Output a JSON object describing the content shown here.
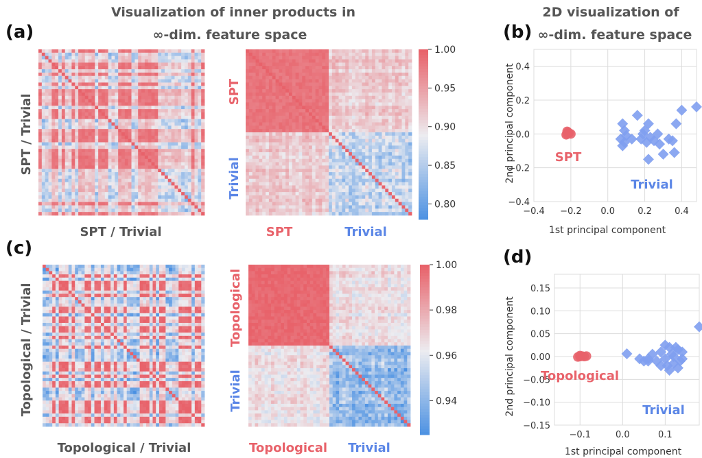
{
  "figure_title_a": [
    "Visualization of inner products in",
    "∞-dim. feature space"
  ],
  "figure_title_b": [
    "2D visualization of",
    "∞-dim. feature space"
  ],
  "panel_labels": [
    "(a)",
    "(b)",
    "(c)",
    "(d)"
  ],
  "colors": {
    "spt": "#e8626a",
    "trivial": "#5b86e6",
    "gray_text": "#555555",
    "diamond": "#7f9ef0",
    "grid": "#dcdcdc"
  },
  "chart_data": [
    {
      "panel": "(a) left",
      "type": "heatmap",
      "matrix_size": 50,
      "xlabel": "SPT / Trivial",
      "ylabel": "SPT / Trivial",
      "ordering": "interleaved",
      "value_range": [
        0.78,
        1.0
      ]
    },
    {
      "panel": "(a) right",
      "type": "heatmap",
      "matrix_size": 50,
      "groups": [
        "SPT",
        "Trivial"
      ],
      "group_sizes": [
        25,
        25
      ],
      "ordering": "sorted",
      "colorbar": {
        "min": 0.78,
        "max": 1.0,
        "ticks": [
          "1.00",
          "0.95",
          "0.90",
          "0.85",
          "0.80"
        ],
        "tick_values": [
          1.0,
          0.95,
          0.9,
          0.85,
          0.8
        ]
      },
      "typical_values": {
        "spt_spt": 0.985,
        "spt_trivial": 0.915,
        "trivial_trivial": 0.86,
        "diagonal": 1.0
      }
    },
    {
      "panel": "(b)",
      "type": "scatter",
      "xlabel": "1st principal component",
      "ylabel": "2nd principal component",
      "xlim": [
        -0.4,
        0.48
      ],
      "ylim": [
        -0.4,
        0.5
      ],
      "xticks": [
        "−0.4",
        "−0.2",
        "0.0",
        "0.2",
        "0.4"
      ],
      "xtick_values": [
        -0.4,
        -0.2,
        0.0,
        0.2,
        0.4
      ],
      "yticks": [
        "−0.4",
        "−0.2",
        "0.0",
        "0.2",
        "0.4"
      ],
      "ytick_values": [
        -0.4,
        -0.2,
        0.0,
        0.2,
        0.4
      ],
      "grid": true,
      "series": [
        {
          "name": "SPT",
          "marker": "circle",
          "color": "#e8626a",
          "points": [
            [
              -0.22,
              0.0
            ],
            [
              -0.215,
              0.01
            ],
            [
              -0.225,
              -0.005
            ],
            [
              -0.21,
              0.005
            ],
            [
              -0.22,
              0.015
            ],
            [
              -0.2,
              0.0
            ]
          ]
        },
        {
          "name": "Trivial",
          "marker": "diamond",
          "color": "#7f9ef0",
          "points": [
            [
              0.08,
              0.06
            ],
            [
              0.09,
              0.02
            ],
            [
              0.07,
              -0.03
            ],
            [
              0.08,
              -0.07
            ],
            [
              0.16,
              0.11
            ],
            [
              0.13,
              -0.03
            ],
            [
              0.18,
              -0.03
            ],
            [
              0.2,
              0.02
            ],
            [
              0.21,
              -0.05
            ],
            [
              0.22,
              0.06
            ],
            [
              0.23,
              -0.02
            ],
            [
              0.25,
              -0.04
            ],
            [
              0.22,
              -0.15
            ],
            [
              0.3,
              -0.12
            ],
            [
              0.35,
              -0.04
            ],
            [
              0.37,
              0.06
            ],
            [
              0.36,
              -0.11
            ],
            [
              0.4,
              0.14
            ],
            [
              0.48,
              0.16
            ],
            [
              0.1,
              -0.01
            ],
            [
              0.19,
              0.0
            ],
            [
              0.27,
              0.0
            ],
            [
              0.28,
              -0.06
            ],
            [
              0.33,
              -0.03
            ],
            [
              0.09,
              -0.05
            ]
          ]
        }
      ],
      "annotations": [
        "SPT",
        "Trivial"
      ]
    },
    {
      "panel": "(c) left",
      "type": "heatmap",
      "matrix_size": 50,
      "xlabel": "Topological / Trivial",
      "ylabel": "Topological / Trivial",
      "ordering": "interleaved",
      "value_range": [
        0.925,
        1.0
      ]
    },
    {
      "panel": "(c) right",
      "type": "heatmap",
      "matrix_size": 50,
      "groups": [
        "Topological",
        "Trivial"
      ],
      "group_sizes": [
        25,
        25
      ],
      "ordering": "sorted",
      "colorbar": {
        "min": 0.925,
        "max": 1.0,
        "ticks": [
          "1.00",
          "0.98",
          "0.96",
          "0.94"
        ],
        "tick_values": [
          1.0,
          0.98,
          0.96,
          0.94
        ]
      },
      "typical_values": {
        "top_top": 0.998,
        "top_trivial": 0.965,
        "trivial_trivial": 0.942,
        "diagonal": 1.0
      }
    },
    {
      "panel": "(d)",
      "type": "scatter",
      "xlabel": "1st principal component",
      "ylabel": "2nd principal component",
      "xlim": [
        -0.16,
        0.18
      ],
      "ylim": [
        -0.15,
        0.18
      ],
      "xticks": [
        "−0.1",
        "0.0",
        "0.1"
      ],
      "xtick_values": [
        -0.1,
        0.0,
        0.1
      ],
      "yticks": [
        "0.15",
        "0.10",
        "0.05",
        "0.00",
        "−0.05",
        "−0.10",
        "−0.15"
      ],
      "ytick_values": [
        0.15,
        0.1,
        0.05,
        0.0,
        -0.05,
        -0.1,
        -0.15
      ],
      "grid": true,
      "series": [
        {
          "name": "Topological",
          "marker": "circle",
          "color": "#e8626a",
          "points": [
            [
              -0.1,
              0.0
            ],
            [
              -0.095,
              0.001
            ],
            [
              -0.105,
              -0.001
            ],
            [
              -0.09,
              0.0
            ],
            [
              -0.085,
              0.001
            ],
            [
              -0.1,
              0.002
            ]
          ]
        },
        {
          "name": "Trivial",
          "marker": "diamond",
          "color": "#7f9ef0",
          "points": [
            [
              0.01,
              0.006
            ],
            [
              0.04,
              -0.005
            ],
            [
              0.05,
              -0.01
            ],
            [
              0.06,
              -0.005
            ],
            [
              0.07,
              0.005
            ],
            [
              0.08,
              -0.01
            ],
            [
              0.09,
              0.01
            ],
            [
              0.1,
              0.025
            ],
            [
              0.1,
              -0.005
            ],
            [
              0.11,
              0.02
            ],
            [
              0.11,
              -0.03
            ],
            [
              0.12,
              0.0
            ],
            [
              0.12,
              -0.015
            ],
            [
              0.13,
              0.015
            ],
            [
              0.13,
              -0.025
            ],
            [
              0.14,
              -0.005
            ],
            [
              0.14,
              0.01
            ],
            [
              0.09,
              -0.02
            ],
            [
              0.06,
              -0.01
            ],
            [
              0.115,
              0.005
            ],
            [
              0.105,
              -0.02
            ],
            [
              0.125,
              0.02
            ],
            [
              0.135,
              -0.01
            ],
            [
              0.18,
              0.065
            ]
          ]
        }
      ],
      "annotations": [
        "Topological",
        "Trivial"
      ]
    }
  ]
}
